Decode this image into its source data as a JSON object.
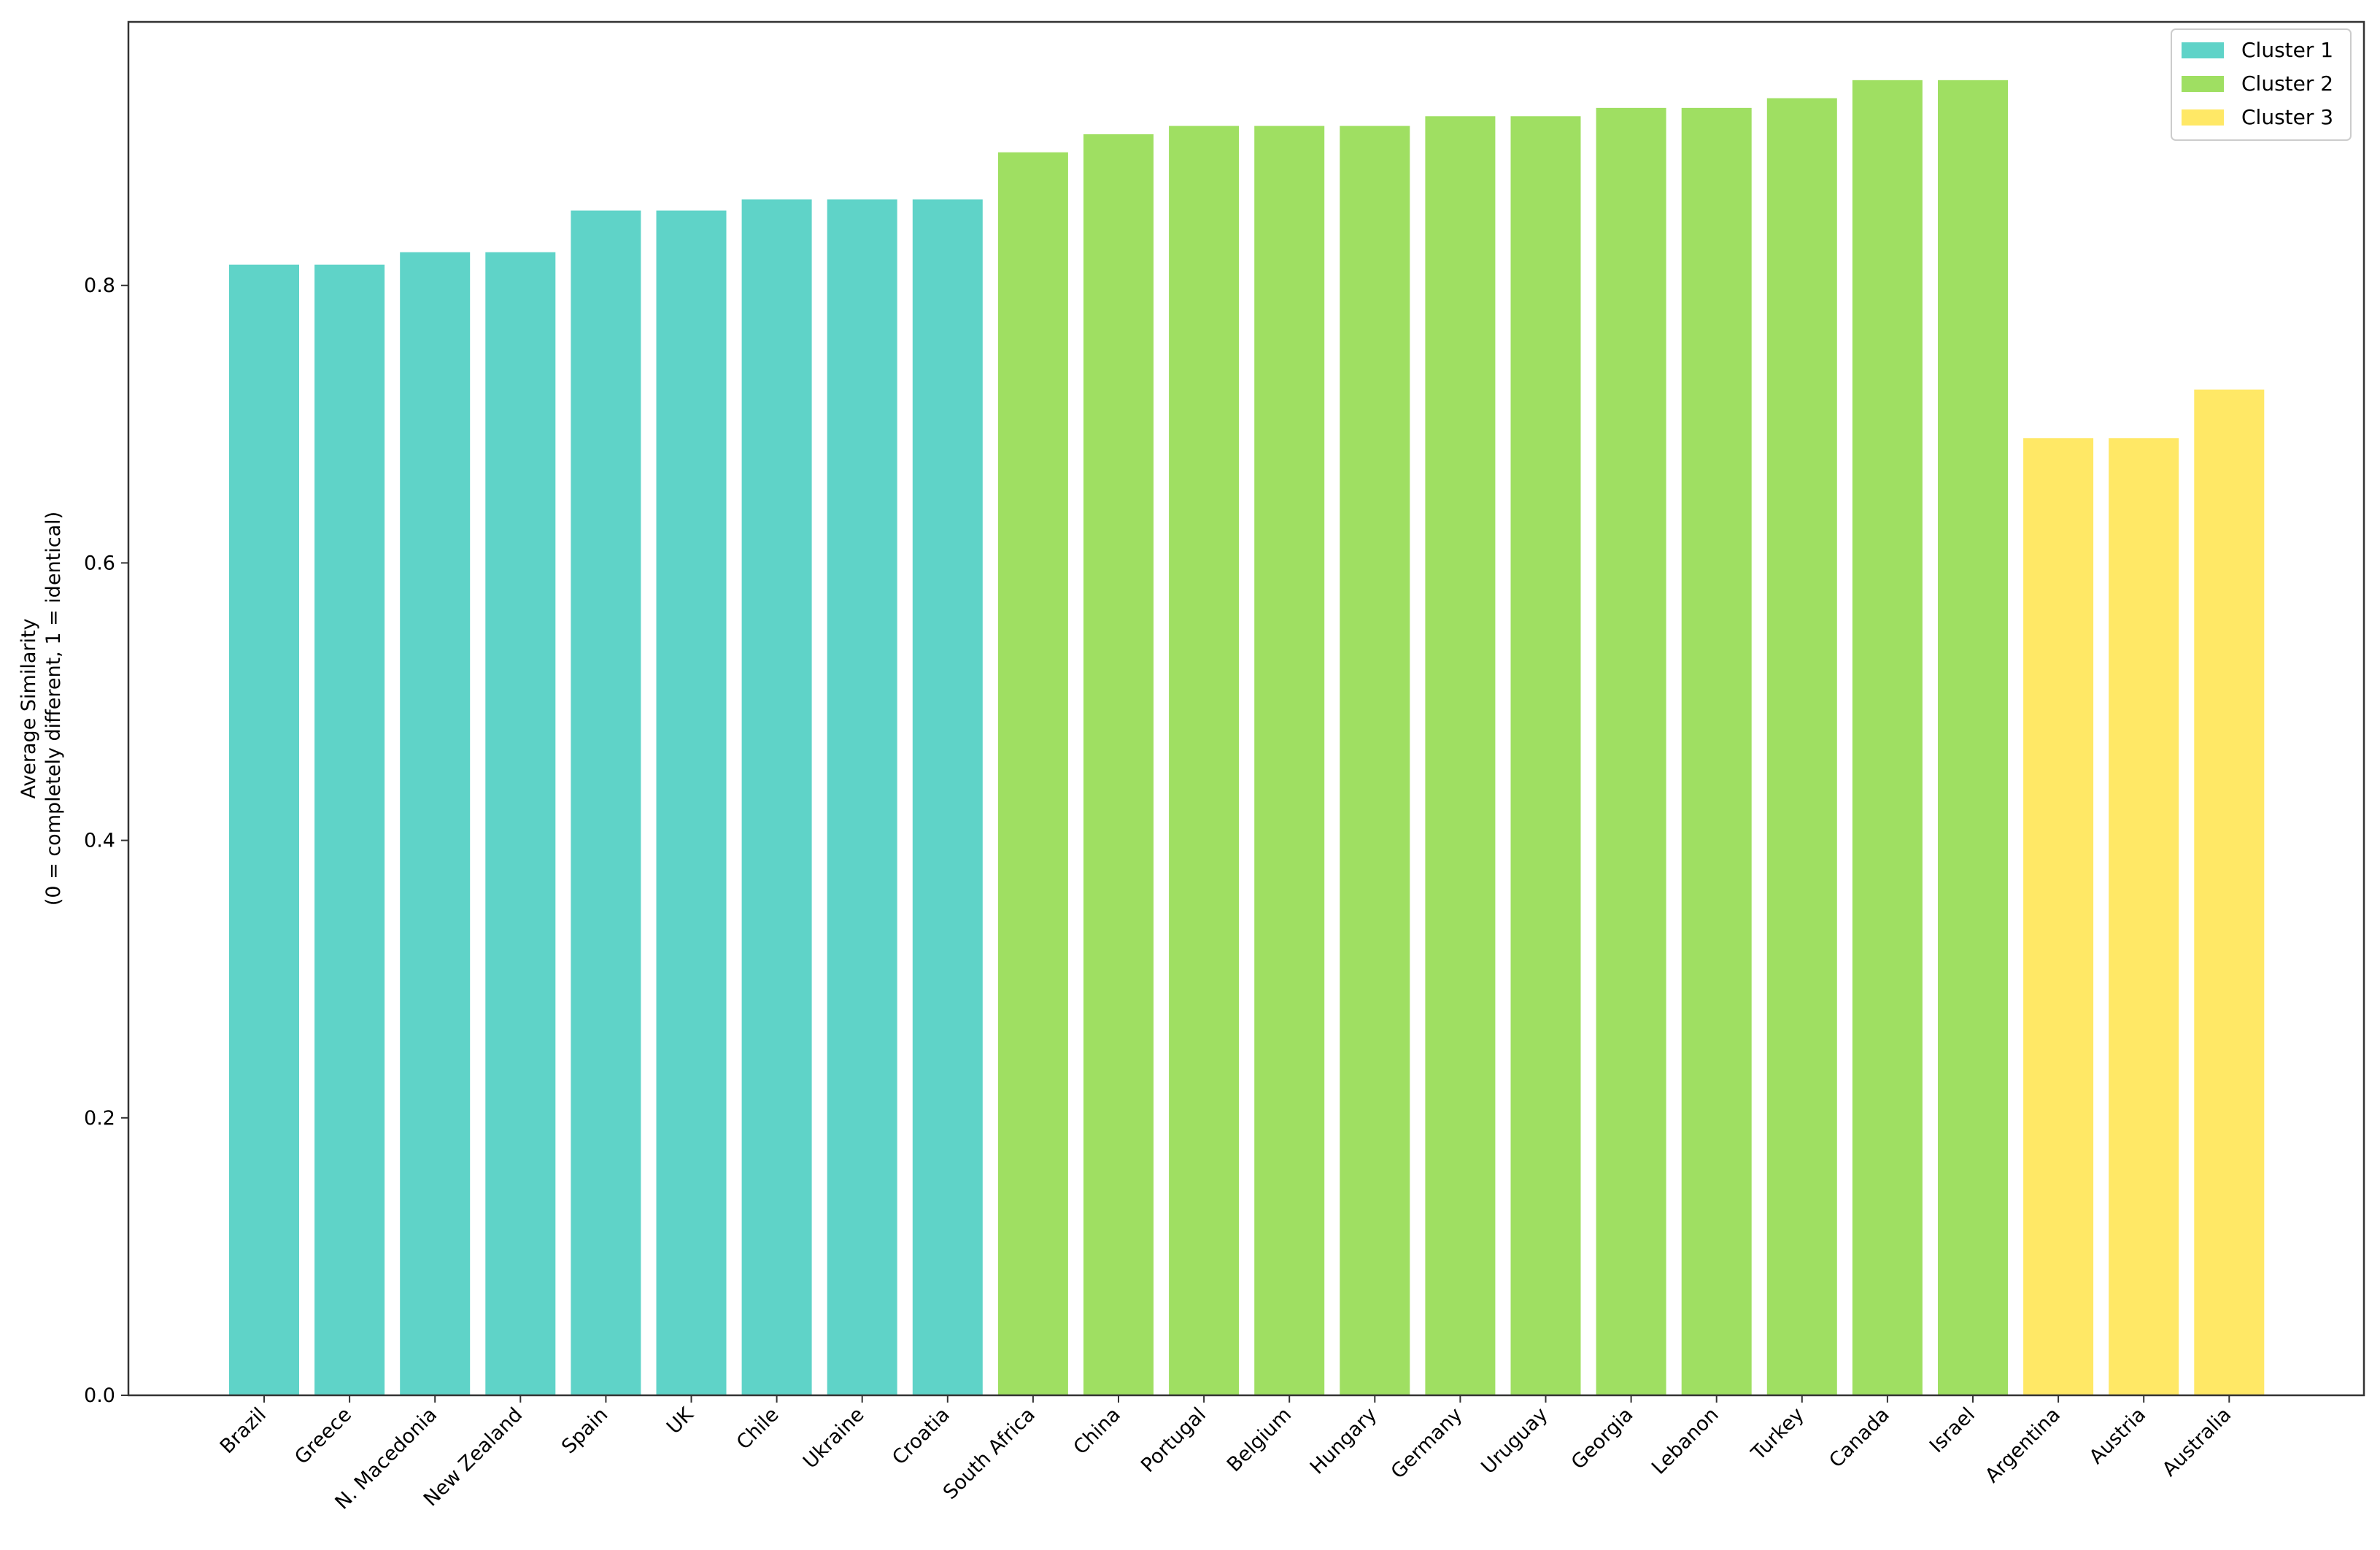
{
  "chart_data": {
    "type": "bar",
    "title": "",
    "xlabel": "",
    "ylabel_line1": "Average Similarity",
    "ylabel_line2": "(0 = completely different, 1 = identical)",
    "ylim": [
      0,
      0.99
    ],
    "yticks": [
      0.0,
      0.2,
      0.4,
      0.6,
      0.8
    ],
    "ytick_labels": [
      "0.0",
      "0.2",
      "0.4",
      "0.6",
      "0.8"
    ],
    "grid": false,
    "legend_position": "top-right",
    "clusters": [
      {
        "name": "Cluster 1",
        "color": "#5fd3c8"
      },
      {
        "name": "Cluster 2",
        "color": "#9fdf62"
      },
      {
        "name": "Cluster 3",
        "color": "#ffe866"
      }
    ],
    "categories": [
      "Brazil",
      "Greece",
      "N. Macedonia",
      "New Zealand",
      "Spain",
      "UK",
      "Chile",
      "Ukraine",
      "Croatia",
      "South Africa",
      "China",
      "Portugal",
      "Belgium",
      "Hungary",
      "Germany",
      "Uruguay",
      "Georgia",
      "Lebanon",
      "Turkey",
      "Canada",
      "Israel",
      "Argentina",
      "Austria",
      "Australia"
    ],
    "values": [
      0.815,
      0.815,
      0.824,
      0.824,
      0.854,
      0.854,
      0.862,
      0.862,
      0.862,
      0.896,
      0.909,
      0.915,
      0.915,
      0.915,
      0.922,
      0.922,
      0.928,
      0.928,
      0.935,
      0.948,
      0.948,
      0.69,
      0.69,
      0.725
    ],
    "cluster_index": [
      0,
      0,
      0,
      0,
      0,
      0,
      0,
      0,
      0,
      1,
      1,
      1,
      1,
      1,
      1,
      1,
      1,
      1,
      1,
      1,
      1,
      2,
      2,
      2
    ]
  }
}
